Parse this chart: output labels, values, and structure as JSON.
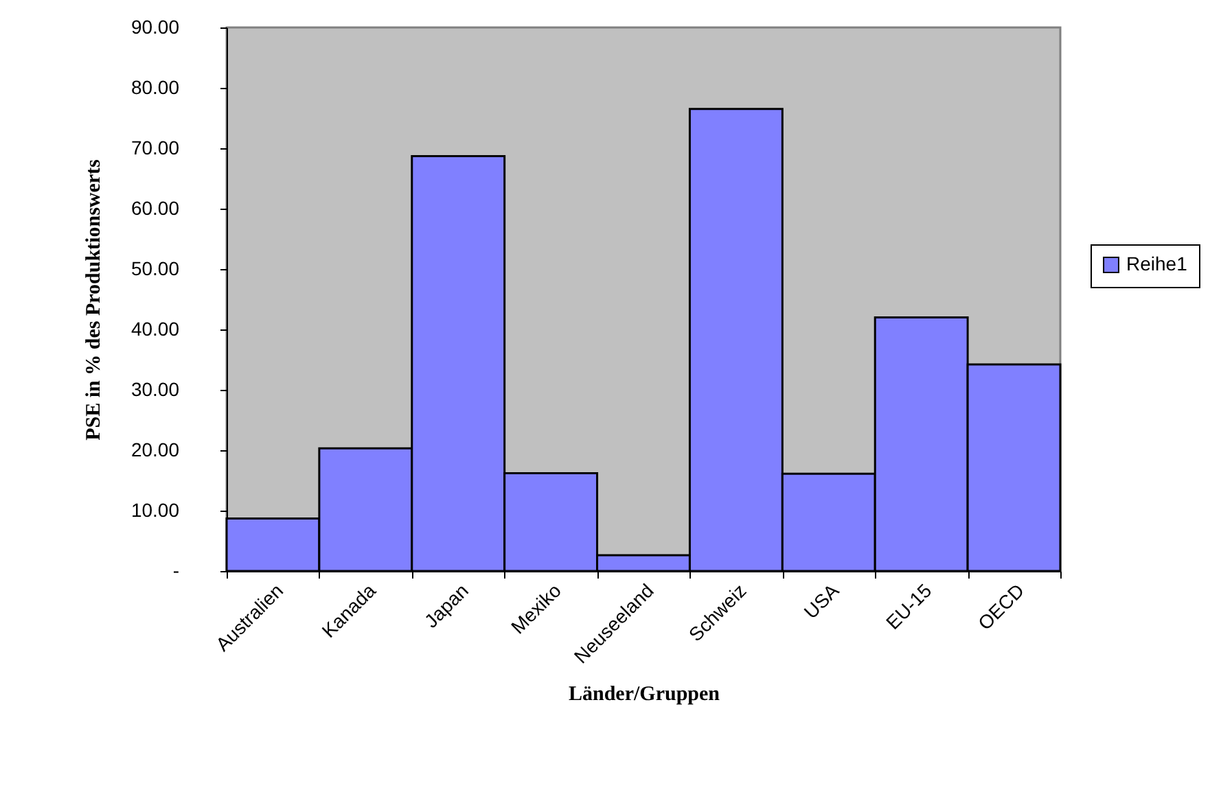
{
  "chart_data": {
    "type": "bar",
    "xlabel": "Länder/Gruppen",
    "ylabel": "PSE in % des Produktionswerts",
    "categories": [
      "Australien",
      "Kanada",
      "Japan",
      "Mexiko",
      "Neuseeland",
      "Schweiz",
      "USA",
      "EU-15",
      "OECD"
    ],
    "series": [
      {
        "name": "Reihe1",
        "color": "#8080ff",
        "values": [
          8.7,
          20.3,
          68.7,
          16.2,
          2.6,
          76.5,
          16.1,
          42.0,
          34.2
        ]
      }
    ],
    "ylim": [
      0,
      90
    ],
    "yticks": [
      {
        "value": 0,
        "label": "-"
      },
      {
        "value": 10,
        "label": "10.00"
      },
      {
        "value": 20,
        "label": "20.00"
      },
      {
        "value": 30,
        "label": "30.00"
      },
      {
        "value": 40,
        "label": "40.00"
      },
      {
        "value": 50,
        "label": "50.00"
      },
      {
        "value": 60,
        "label": "60.00"
      },
      {
        "value": 70,
        "label": "70.00"
      },
      {
        "value": 80,
        "label": "80.00"
      },
      {
        "value": 90,
        "label": "90.00"
      }
    ],
    "legend": "right"
  }
}
